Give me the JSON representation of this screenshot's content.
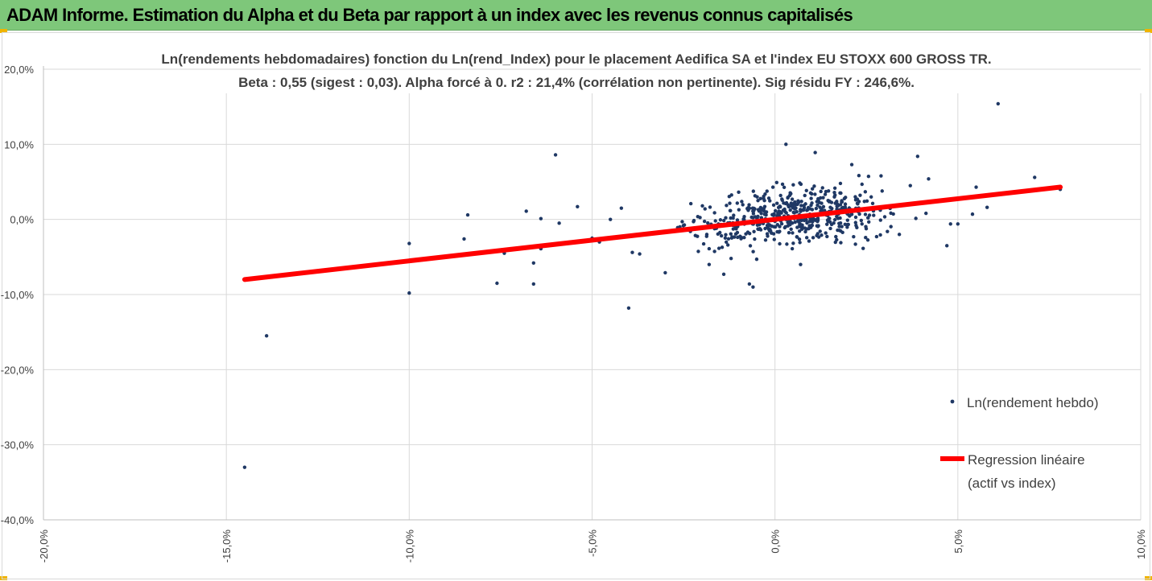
{
  "header": {
    "title": "ADAM Informe. Estimation du Alpha et du Beta par rapport à un index avec les revenus connus capitalisés"
  },
  "chart_data": {
    "type": "scatter",
    "title": "Ln(rendements hebdomadaires) fonction du Ln(rend_Index) pour le placement Aedifica SA et l'index EU STOXX 600 GROSS TR.",
    "subtitle": "Beta : 0,55 (sigest : 0,03). Alpha forcé à 0. r2 : 21,4% (corrélation non pertinente). Sig résidu FY : 246,6%.",
    "xlabel": "",
    "ylabel": "",
    "xlim": [
      -20,
      10
    ],
    "ylim": [
      -40,
      20
    ],
    "x_ticks": [
      {
        "v": -20,
        "label": "-20,0%"
      },
      {
        "v": -15,
        "label": "-15,0%"
      },
      {
        "v": -10,
        "label": "-10,0%"
      },
      {
        "v": -5,
        "label": "-5,0%"
      },
      {
        "v": 0,
        "label": "0,0%"
      },
      {
        "v": 5,
        "label": "5,0%"
      },
      {
        "v": 10,
        "label": "10,0%"
      }
    ],
    "y_ticks": [
      {
        "v": 20,
        "label": "20,0%"
      },
      {
        "v": 10,
        "label": "10,0%"
      },
      {
        "v": 0,
        "label": "0,0%"
      },
      {
        "v": -10,
        "label": "-10,0%"
      },
      {
        "v": -20,
        "label": "-20,0%"
      },
      {
        "v": -30,
        "label": "-30,0%"
      },
      {
        "v": -40,
        "label": "-40,0%"
      }
    ],
    "grid": true,
    "legend_position": "right",
    "series": [
      {
        "name": "Ln(rendement hebdo)",
        "kind": "scatter",
        "color": "#1f3864",
        "points": [
          [
            -14.5,
            -33.0
          ],
          [
            -13.9,
            -15.5
          ],
          [
            -10.0,
            -9.8
          ],
          [
            -10.0,
            -3.2
          ],
          [
            -8.4,
            0.6
          ],
          [
            -8.5,
            -2.6
          ],
          [
            -7.6,
            -8.5
          ],
          [
            -7.4,
            -4.5
          ],
          [
            -6.6,
            -8.6
          ],
          [
            -6.6,
            -5.8
          ],
          [
            -6.4,
            0.1
          ],
          [
            -6.0,
            8.6
          ],
          [
            -6.4,
            -3.9
          ],
          [
            -5.4,
            1.7
          ],
          [
            -5.0,
            -2.5
          ],
          [
            -4.8,
            -3.0
          ],
          [
            -4.0,
            -11.8
          ],
          [
            -3.9,
            -4.4
          ],
          [
            -3.7,
            -4.6
          ],
          [
            -3.0,
            -7.1
          ],
          [
            -2.6,
            -1.0
          ],
          [
            -2.3,
            2.1
          ],
          [
            -1.8,
            -6.0
          ],
          [
            -1.8,
            -3.9
          ],
          [
            -1.4,
            -7.3
          ],
          [
            -1.2,
            -5.2
          ],
          [
            -0.7,
            -8.6
          ],
          [
            -0.6,
            -9.0
          ],
          [
            -0.5,
            -5.3
          ],
          [
            0.3,
            10.0
          ],
          [
            0.5,
            4.6
          ],
          [
            0.7,
            -6.0
          ],
          [
            1.1,
            8.9
          ],
          [
            1.3,
            4.2
          ],
          [
            1.8,
            3.5
          ],
          [
            2.1,
            7.3
          ],
          [
            1.8,
            -3.1
          ],
          [
            2.2,
            -3.3
          ],
          [
            2.9,
            5.8
          ],
          [
            3.4,
            -2.0
          ],
          [
            3.7,
            4.5
          ],
          [
            3.9,
            8.4
          ],
          [
            4.2,
            5.4
          ],
          [
            4.7,
            -3.5
          ],
          [
            4.8,
            -0.6
          ],
          [
            5.0,
            -0.6
          ],
          [
            5.4,
            0.7
          ],
          [
            5.5,
            4.3
          ],
          [
            5.8,
            1.6
          ],
          [
            6.1,
            15.4
          ],
          [
            7.1,
            5.6
          ],
          [
            7.8,
            4.0
          ],
          [
            -6.8,
            1.1
          ],
          [
            -5.9,
            -0.5
          ],
          [
            -4.5,
            0.0
          ],
          [
            -4.2,
            1.5
          ]
        ],
        "cloud": {
          "center_x": 0.4,
          "center_y": 0.6,
          "count": 520,
          "spread_x": 1.35,
          "beta": 0.55,
          "resid": 1.7
        }
      },
      {
        "name": "Regression linéaire\n(actif vs index)",
        "legend_lines": [
          "Regression linéaire",
          "(actif vs index)"
        ],
        "kind": "line",
        "color": "#ff0000",
        "x": [
          -14.5,
          7.8
        ],
        "y": [
          -8.0,
          4.3
        ]
      }
    ]
  }
}
